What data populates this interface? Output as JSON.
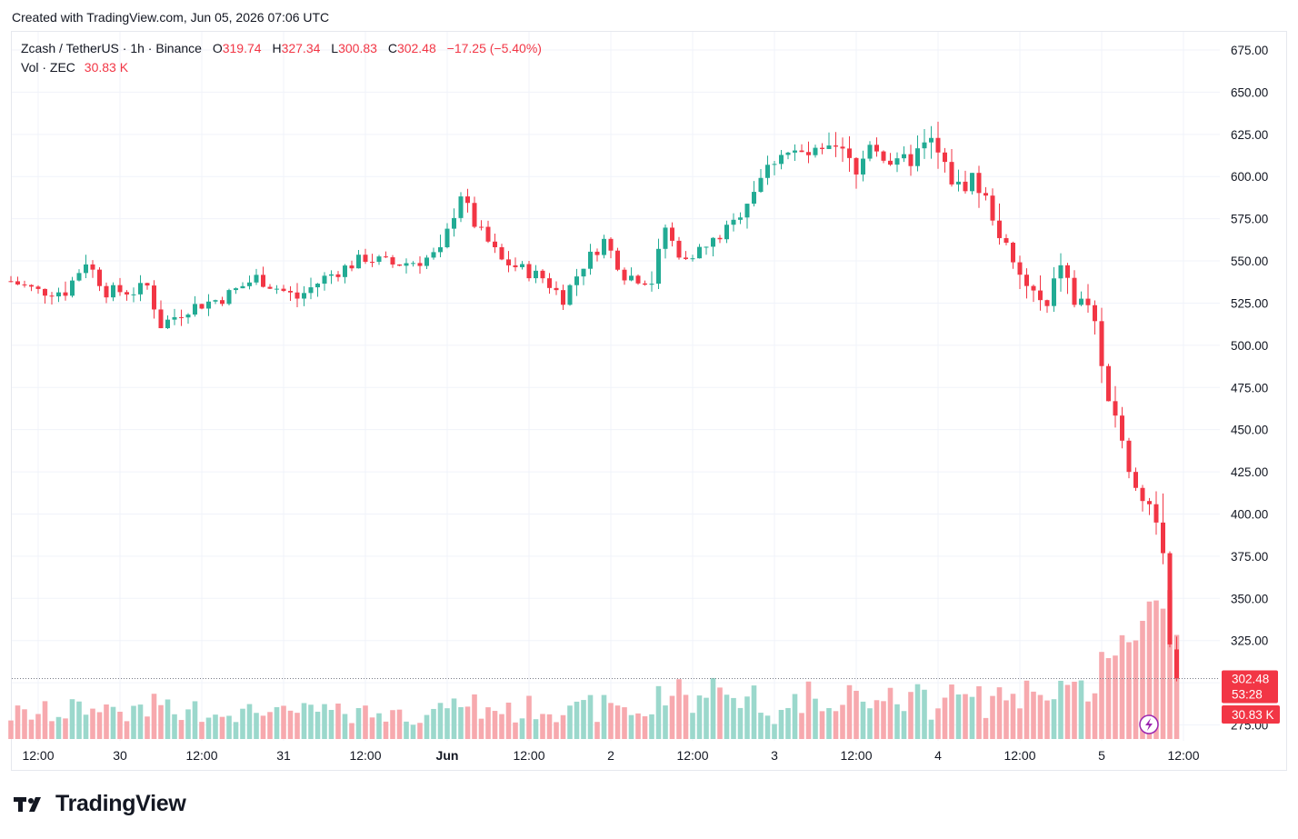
{
  "header": {
    "created_text": "Created with TradingView.com, Jun 05, 2026 07:06 UTC"
  },
  "legend": {
    "symbol": "Zcash / TetherUS · 1h · Binance",
    "o_label": "O",
    "o_value": "319.74",
    "h_label": "H",
    "h_value": "327.34",
    "l_label": "L",
    "l_value": "300.83",
    "c_label": "C",
    "c_value": "302.48",
    "change": "−17.25 (−5.40%)",
    "vol_label": "Vol · ZEC",
    "vol_value": "30.83 K"
  },
  "brand": {
    "name": "TradingView"
  },
  "colors": {
    "up": "#22ab94",
    "down": "#f23645",
    "up_vol": "#9bd8cc",
    "down_vol": "#f7a9ae",
    "grid": "#f0f3fa"
  },
  "chart_data": {
    "type": "candlestick",
    "interval": "1h",
    "y_axis": {
      "ticks": [
        275,
        300,
        325,
        350,
        375,
        400,
        425,
        450,
        475,
        500,
        525,
        550,
        575,
        600,
        625,
        650,
        675
      ],
      "ylim": [
        266,
        690
      ],
      "side": "right"
    },
    "x_axis": {
      "labels": [
        "12:00",
        "30",
        "12:00",
        "31",
        "12:00",
        "Jun",
        "12:00",
        "2",
        "12:00",
        "3",
        "12:00",
        "4",
        "12:00",
        "5",
        "12:00"
      ],
      "label_hours": [
        -12,
        0,
        12,
        24,
        36,
        48,
        60,
        72,
        84,
        96,
        108,
        120,
        132,
        144,
        156
      ]
    },
    "grid": true,
    "last_price": {
      "value": 302.48,
      "label": "302.48",
      "countdown": "53:28"
    },
    "last_volume": {
      "label": "30.83 K"
    },
    "anchors": [
      {
        "h": -16,
        "p": 538
      },
      {
        "h": -12,
        "p": 532
      },
      {
        "h": -8,
        "p": 532
      },
      {
        "h": -5,
        "p": 550
      },
      {
        "h": -2,
        "p": 532
      },
      {
        "h": 2,
        "p": 532
      },
      {
        "h": 4,
        "p": 535
      },
      {
        "h": 6,
        "p": 512
      },
      {
        "h": 10,
        "p": 522
      },
      {
        "h": 15,
        "p": 528
      },
      {
        "h": 20,
        "p": 540
      },
      {
        "h": 26,
        "p": 528
      },
      {
        "h": 30,
        "p": 540
      },
      {
        "h": 36,
        "p": 552
      },
      {
        "h": 40,
        "p": 548
      },
      {
        "h": 44,
        "p": 550
      },
      {
        "h": 47,
        "p": 555
      },
      {
        "h": 50,
        "p": 590
      },
      {
        "h": 52,
        "p": 572
      },
      {
        "h": 56,
        "p": 550
      },
      {
        "h": 62,
        "p": 540
      },
      {
        "h": 65,
        "p": 528
      },
      {
        "h": 68,
        "p": 548
      },
      {
        "h": 71,
        "p": 562
      },
      {
        "h": 74,
        "p": 542
      },
      {
        "h": 78,
        "p": 538
      },
      {
        "h": 80,
        "p": 570
      },
      {
        "h": 82,
        "p": 552
      },
      {
        "h": 86,
        "p": 558
      },
      {
        "h": 90,
        "p": 572
      },
      {
        "h": 94,
        "p": 600
      },
      {
        "h": 97,
        "p": 615
      },
      {
        "h": 102,
        "p": 612
      },
      {
        "h": 106,
        "p": 614
      },
      {
        "h": 108,
        "p": 600
      },
      {
        "h": 110,
        "p": 622
      },
      {
        "h": 114,
        "p": 605
      },
      {
        "h": 119,
        "p": 620
      },
      {
        "h": 121,
        "p": 605
      },
      {
        "h": 123,
        "p": 593
      },
      {
        "h": 125,
        "p": 600
      },
      {
        "h": 128,
        "p": 578
      },
      {
        "h": 131,
        "p": 545
      },
      {
        "h": 134,
        "p": 530
      },
      {
        "h": 136,
        "p": 520
      },
      {
        "h": 138,
        "p": 550
      },
      {
        "h": 140,
        "p": 525
      },
      {
        "h": 142,
        "p": 525
      },
      {
        "h": 143,
        "p": 515
      },
      {
        "h": 144,
        "p": 482
      },
      {
        "h": 146,
        "p": 460
      },
      {
        "h": 148,
        "p": 425
      },
      {
        "h": 150,
        "p": 410
      },
      {
        "h": 152,
        "p": 398
      },
      {
        "h": 153,
        "p": 375
      },
      {
        "h": 154,
        "p": 319.74
      }
    ],
    "last_candle": {
      "open": 319.74,
      "high": 327.34,
      "low": 300.83,
      "close": 302.48,
      "volume_k": 30.83
    }
  }
}
